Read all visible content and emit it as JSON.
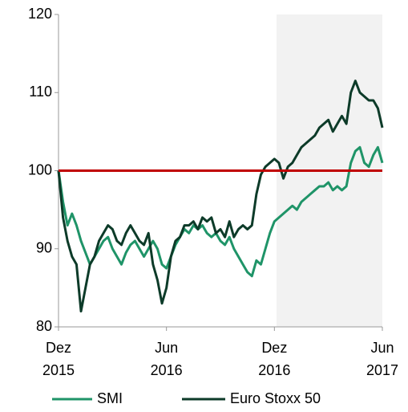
{
  "chart_data": {
    "type": "line",
    "categories": [
      "Dez\n2015",
      null,
      null,
      null,
      null,
      null,
      null,
      null,
      null,
      null,
      null,
      null,
      null,
      null,
      null,
      null,
      null,
      null,
      null,
      null,
      null,
      null,
      null,
      null,
      "Jun\n2016",
      null,
      null,
      null,
      null,
      null,
      null,
      null,
      null,
      null,
      null,
      null,
      null,
      null,
      null,
      null,
      null,
      null,
      null,
      null,
      null,
      null,
      null,
      null,
      "Dez\n2016",
      null,
      null,
      null,
      null,
      null,
      null,
      null,
      null,
      null,
      null,
      null,
      null,
      null,
      null,
      null,
      null,
      null,
      null,
      null,
      null,
      null,
      null,
      null,
      "Jun\n2017"
    ],
    "series": [
      {
        "name": "SMI",
        "color": "#1f9468",
        "values": [
          100,
          96,
          93,
          94.5,
          93,
          91,
          89.5,
          88,
          89,
          90,
          91,
          91.5,
          90,
          89,
          88,
          89.5,
          90.5,
          91,
          90,
          89,
          90,
          91,
          90,
          88,
          87.5,
          89,
          90.5,
          91.5,
          92.5,
          92,
          93,
          92.5,
          93,
          92,
          91.5,
          92,
          91,
          90.5,
          91.5,
          90,
          89,
          88,
          87,
          86.5,
          88.5,
          88,
          90,
          92,
          93.5,
          94,
          94.5,
          95,
          95.5,
          95,
          96,
          96.5,
          97,
          97.5,
          98,
          98,
          98.5,
          97.5,
          98,
          97.5,
          98,
          101,
          102.5,
          103,
          101,
          100.5,
          102,
          103,
          101
        ]
      },
      {
        "name": "Euro Stoxx 50",
        "color": "#0d3b29",
        "values": [
          100,
          94,
          91,
          89,
          88,
          82,
          85,
          88,
          89,
          91,
          92,
          93,
          92.5,
          91,
          90.5,
          92,
          93,
          92,
          91,
          90.5,
          92,
          88,
          86,
          83,
          85,
          89,
          91,
          91.5,
          93,
          93,
          93.5,
          92.5,
          94,
          93.5,
          94,
          92,
          92.5,
          91.5,
          93.5,
          91.5,
          92.5,
          93,
          92.5,
          93,
          97,
          99.5,
          100.5,
          101,
          101.5,
          101,
          99,
          100.5,
          101,
          102,
          103,
          103.5,
          104,
          104.5,
          105.5,
          106,
          106.5,
          105,
          106,
          107,
          106,
          110,
          111.5,
          110,
          109.5,
          109,
          109,
          108,
          105.5
        ]
      }
    ],
    "ylim": [
      80,
      120
    ],
    "yticks": [
      80,
      90,
      100,
      110,
      120
    ],
    "hline": {
      "value": 100,
      "color": "#c00000"
    },
    "legend": "bottom"
  }
}
